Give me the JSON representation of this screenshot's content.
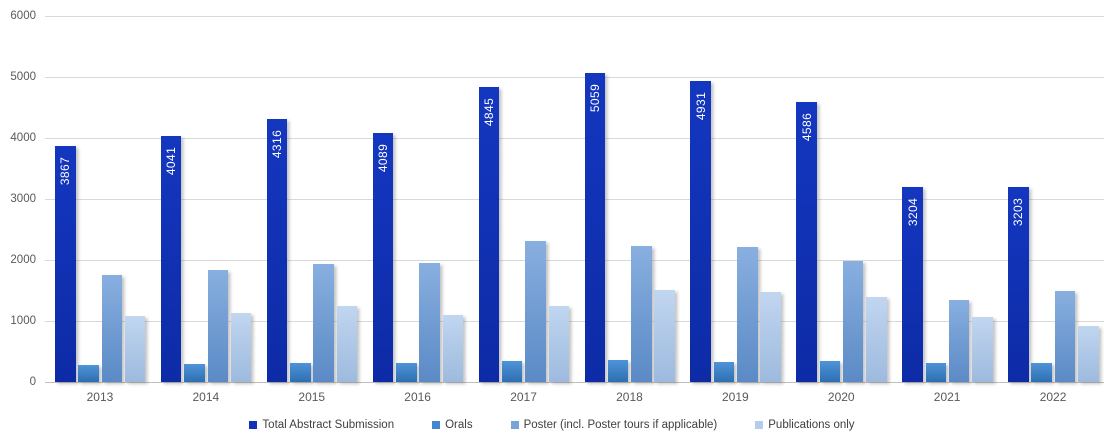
{
  "chart_data": {
    "type": "bar",
    "title": "",
    "xlabel": "",
    "ylabel": "",
    "ylim": [
      0,
      6000
    ],
    "ytick_interval": 1000,
    "grid": true,
    "legend_position": "bottom",
    "categories": [
      "2013",
      "2014",
      "2015",
      "2016",
      "2017",
      "2018",
      "2019",
      "2020",
      "2021",
      "2022"
    ],
    "series": [
      {
        "name": "Total Abstract Submission",
        "values": [
          3867,
          4041,
          4316,
          4089,
          4845,
          5059,
          4931,
          4586,
          3204,
          3203
        ],
        "show_labels": true,
        "color_top": "#1437c0",
        "color_bottom": "#0d2ba6",
        "legend_color": "#1132b6"
      },
      {
        "name": "Orals",
        "values": [
          285,
          300,
          320,
          305,
          340,
          355,
          335,
          345,
          320,
          320
        ],
        "show_labels": false,
        "color_top": "#4f93d8",
        "color_bottom": "#2e6fb2",
        "legend_color": "#4388ce"
      },
      {
        "name": "Poster (incl. Poster tours if applicable)",
        "values": [
          1760,
          1845,
          1935,
          1950,
          2310,
          2235,
          2210,
          1980,
          1350,
          1485
        ],
        "show_labels": false,
        "color_top": "#88afdf",
        "color_bottom": "#5b8ac6",
        "legend_color": "#79a4da"
      },
      {
        "name": "Publications only",
        "values": [
          1090,
          1140,
          1240,
          1105,
          1240,
          1515,
          1470,
          1390,
          1060,
          925
        ],
        "show_labels": false,
        "color_top": "#c1d6f0",
        "color_bottom": "#9dbade",
        "legend_color": "#b4cdeb"
      }
    ]
  },
  "colors": {
    "gridline": "#d9d9d9",
    "axis_line": "#bfbfbf",
    "tick_text": "#595959",
    "legend_text": "#3f3f3f",
    "background": "#ffffff"
  }
}
